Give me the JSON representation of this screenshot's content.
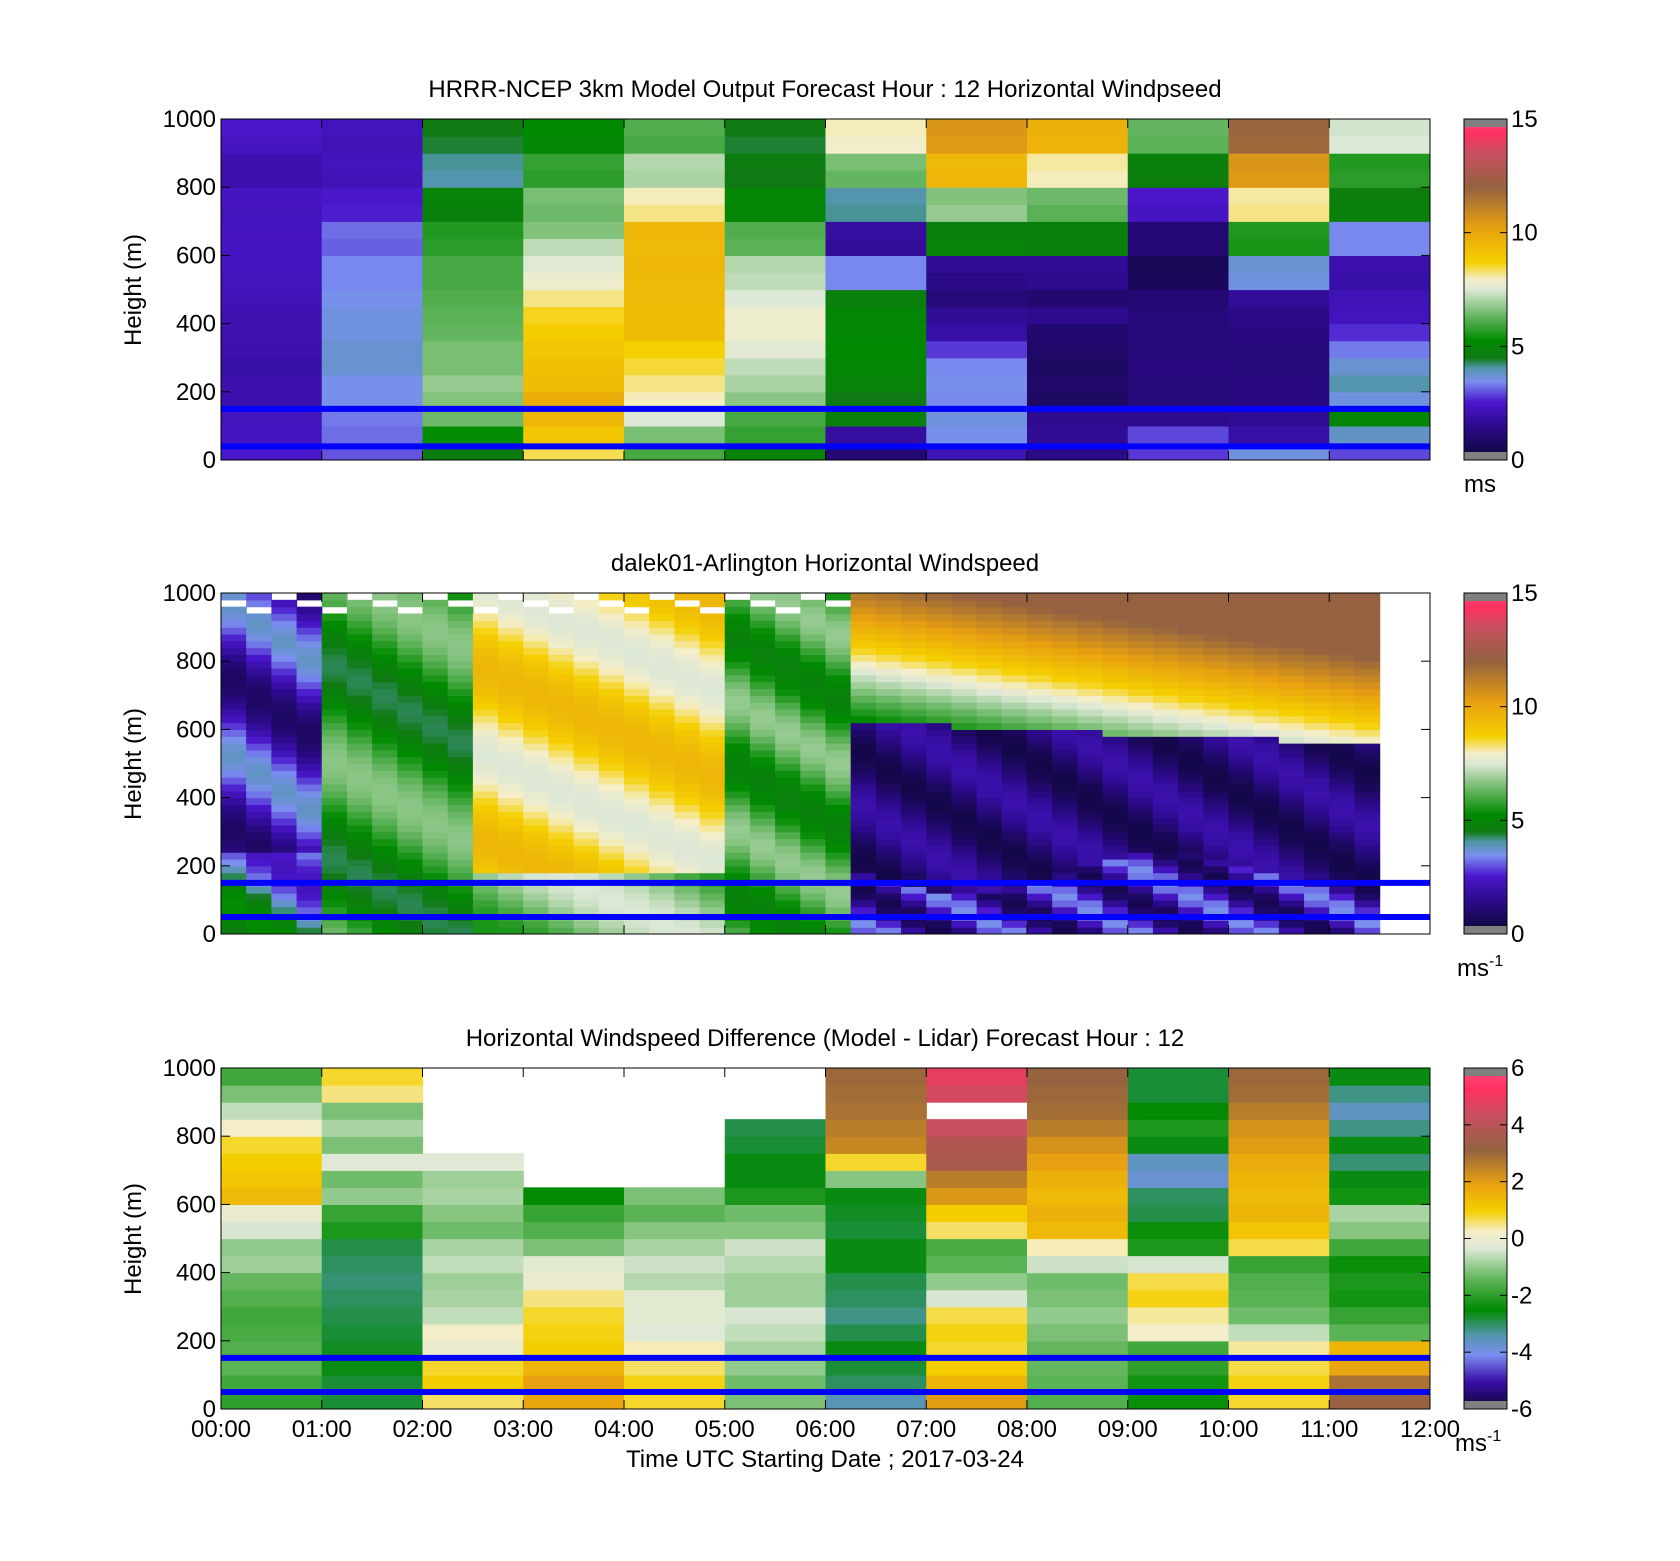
{
  "figure": {
    "xlabel": "Time UTC  Starting Date ; 2017-03-24",
    "x_ticks": [
      "00:00",
      "01:00",
      "02:00",
      "03:00",
      "04:00",
      "05:00",
      "06:00",
      "07:00",
      "08:00",
      "09:00",
      "10:00",
      "11:00",
      "12:00"
    ],
    "reference_line_color": "#0000ff"
  },
  "chart_data": [
    {
      "type": "heatmap",
      "title": "HRRR-NCEP 3km Model Output   Forecast Hour : 12 Horizontal Windpseed",
      "ylabel": "Height (m)",
      "ylim": [
        0,
        1000
      ],
      "y_ticks": [
        0,
        200,
        400,
        600,
        800,
        1000
      ],
      "colorbar": {
        "range": [
          0,
          15
        ],
        "ticks": [
          0,
          5,
          10,
          15
        ],
        "unit": "ms",
        "unit_sup": ""
      },
      "reference_lines_m": [
        40,
        150
      ],
      "x_hours": [
        0,
        1,
        2,
        3,
        4,
        5,
        6,
        7,
        8,
        9,
        10,
        11
      ],
      "heights_m": [
        25,
        75,
        125,
        175,
        225,
        275,
        325,
        375,
        425,
        475,
        525,
        575,
        625,
        675,
        725,
        775,
        825,
        875,
        925,
        975
      ],
      "values": [
        [
          2.5,
          3.0,
          4.6,
          8.4,
          6.0,
          4.9,
          1.1,
          2.2,
          1.4,
          2.8,
          3.6,
          2.9
        ],
        [
          2.4,
          3.2,
          5.3,
          9.0,
          6.5,
          5.8,
          1.8,
          3.5,
          1.6,
          2.9,
          1.9,
          3.8
        ],
        [
          2.3,
          3.3,
          6.4,
          9.5,
          7.5,
          6.0,
          4.8,
          3.6,
          1.5,
          1.5,
          1.6,
          5.0
        ],
        [
          2.0,
          3.5,
          6.6,
          9.8,
          8.0,
          6.7,
          4.5,
          3.4,
          0.8,
          1.2,
          1.3,
          3.6
        ],
        [
          2.0,
          3.5,
          6.8,
          9.3,
          8.2,
          7.0,
          4.9,
          3.5,
          0.9,
          1.2,
          1.3,
          4.0
        ],
        [
          1.9,
          3.7,
          6.5,
          9.2,
          8.5,
          7.2,
          5.0,
          3.4,
          0.8,
          1.3,
          1.2,
          3.7
        ],
        [
          2.0,
          3.7,
          6.5,
          9.0,
          8.7,
          7.6,
          5.2,
          2.8,
          0.9,
          1.2,
          1.2,
          3.3
        ],
        [
          2.1,
          3.6,
          6.3,
          8.8,
          9.3,
          7.8,
          5.1,
          1.9,
          1.0,
          1.2,
          1.3,
          2.7
        ],
        [
          2.1,
          3.6,
          6.2,
          8.6,
          9.3,
          7.8,
          5.0,
          1.6,
          1.5,
          1.2,
          1.4,
          2.3
        ],
        [
          2.2,
          3.5,
          6.1,
          8.2,
          9.4,
          7.5,
          4.8,
          1.2,
          1.0,
          1.1,
          1.7,
          2.2
        ],
        [
          2.3,
          3.4,
          6.0,
          7.8,
          9.4,
          7.2,
          3.4,
          1.4,
          1.5,
          0.7,
          3.6,
          1.9
        ],
        [
          2.4,
          3.4,
          6.0,
          7.6,
          9.5,
          7.1,
          3.4,
          1.6,
          1.6,
          0.6,
          3.7,
          2.0
        ],
        [
          2.4,
          3.1,
          5.7,
          7.2,
          9.4,
          6.2,
          1.7,
          4.9,
          4.8,
          1.1,
          5.5,
          3.4
        ],
        [
          2.4,
          3.2,
          5.6,
          6.6,
          9.5,
          6.1,
          1.8,
          4.8,
          4.8,
          1.1,
          5.6,
          3.4
        ],
        [
          2.3,
          2.6,
          4.8,
          6.4,
          8.2,
          5.0,
          4.1,
          6.8,
          6.2,
          2.4,
          8.2,
          4.8
        ],
        [
          2.4,
          2.5,
          4.9,
          6.5,
          8.0,
          5.1,
          4.0,
          6.6,
          6.4,
          2.5,
          8.1,
          4.7
        ],
        [
          2.0,
          2.2,
          4.0,
          5.7,
          7.0,
          4.5,
          6.3,
          9.5,
          8.0,
          4.7,
          10.4,
          5.7
        ],
        [
          2.0,
          2.3,
          4.1,
          5.8,
          7.1,
          4.6,
          6.5,
          9.4,
          8.1,
          4.8,
          10.5,
          5.6
        ],
        [
          2.4,
          2.2,
          4.4,
          5.1,
          6.0,
          4.4,
          7.9,
          10.4,
          9.6,
          6.2,
          11.8,
          7.5
        ],
        [
          2.5,
          2.3,
          4.5,
          5.2,
          6.1,
          4.5,
          8.0,
          10.5,
          9.7,
          6.3,
          11.9,
          7.4
        ]
      ]
    },
    {
      "type": "heatmap",
      "title": "dalek01-Arlington  Horizontal Windspeed",
      "ylabel": "Height (m)",
      "ylim": [
        0,
        1000
      ],
      "y_ticks": [
        0,
        200,
        400,
        600,
        800,
        1000
      ],
      "colorbar": {
        "range": [
          0,
          15
        ],
        "ticks": [
          0,
          5,
          10,
          15
        ],
        "unit": "ms",
        "unit_sup": "-1"
      },
      "reference_lines_m": [
        50,
        150
      ]
    },
    {
      "type": "heatmap",
      "title": "Horizontal Windspeed Difference (Model - Lidar) Forecast Hour : 12",
      "ylabel": "Height (m)",
      "ylim": [
        0,
        1000
      ],
      "y_ticks": [
        0,
        200,
        400,
        600,
        800,
        1000
      ],
      "colorbar": {
        "range": [
          -6,
          6
        ],
        "ticks": [
          -6,
          -4,
          -2,
          0,
          2,
          4,
          6
        ],
        "unit": "ms",
        "unit_sup": "-1"
      },
      "reference_lines_m": [
        50,
        150
      ],
      "x_hours": [
        0,
        1,
        2,
        3,
        4,
        5,
        6,
        7,
        8,
        9,
        10,
        11
      ],
      "heights_m": [
        25,
        75,
        125,
        175,
        225,
        275,
        325,
        375,
        425,
        475,
        525,
        575,
        625,
        675,
        725,
        775,
        825,
        875,
        925,
        975
      ],
      "values": [
        [
          -2.0,
          -2.8,
          0.6,
          1.8,
          0.8,
          -1.2,
          -3.5,
          2.0,
          -1.6,
          -2.4,
          0.8,
          3.2
        ],
        [
          -1.8,
          -2.8,
          1.0,
          1.9,
          0.9,
          -1.3,
          -3.0,
          1.5,
          -1.5,
          -2.3,
          0.9,
          2.8
        ],
        [
          -1.5,
          -2.6,
          0.8,
          1.5,
          0.6,
          -1.0,
          -2.8,
          1.0,
          -1.4,
          -2.0,
          0.7,
          1.8
        ],
        [
          -1.6,
          -2.7,
          0.0,
          1.0,
          0.3,
          -0.8,
          -2.6,
          0.8,
          -1.4,
          -1.8,
          0.4,
          1.5
        ],
        [
          -1.7,
          -2.8,
          0.2,
          0.9,
          -0.3,
          -0.6,
          -2.9,
          0.9,
          -1.2,
          0.2,
          -0.6,
          -1.5
        ],
        [
          -1.8,
          -2.9,
          -0.6,
          0.8,
          -0.2,
          -0.4,
          -3.2,
          0.7,
          -1.0,
          0.4,
          -1.3,
          -1.9
        ],
        [
          -1.6,
          -3.0,
          -0.8,
          0.5,
          -0.2,
          -0.9,
          -3.0,
          -0.4,
          -1.2,
          0.9,
          -1.5,
          -2.3
        ],
        [
          -1.4,
          -3.1,
          -0.9,
          0.0,
          -0.7,
          -0.9,
          -2.9,
          -1.0,
          -1.3,
          0.7,
          -1.6,
          -2.2
        ],
        [
          -0.9,
          -3.0,
          -0.6,
          -0.2,
          -0.5,
          -0.7,
          -2.6,
          -1.5,
          -0.5,
          -0.4,
          -1.9,
          -2.4
        ],
        [
          -1.0,
          -2.9,
          -0.8,
          -1.2,
          -0.8,
          -0.5,
          -2.6,
          -1.7,
          0.3,
          -2.2,
          0.7,
          -1.8
        ],
        [
          -0.4,
          -2.2,
          -1.3,
          -1.6,
          -1.1,
          -1.1,
          -2.8,
          0.6,
          1.4,
          -2.4,
          1.2,
          -1.1
        ],
        [
          0.0,
          -1.9,
          -1.1,
          -1.9,
          -1.5,
          -1.3,
          -2.7,
          1.0,
          1.6,
          -2.9,
          1.5,
          -0.8
        ],
        [
          1.4,
          -1.0,
          -0.8,
          -2.5,
          -1.2,
          -2.2,
          -2.6,
          2.1,
          1.4,
          -3.0,
          1.4,
          -2.3
        ],
        [
          1.2,
          -1.3,
          -0.9,
          null,
          null,
          -2.6,
          -1.1,
          2.6,
          1.6,
          -3.8,
          1.5,
          -2.6
        ],
        [
          1.0,
          -0.3,
          -0.3,
          null,
          null,
          -2.6,
          0.8,
          3.6,
          1.9,
          -3.6,
          1.7,
          -3.1
        ],
        [
          0.8,
          -1.2,
          null,
          null,
          null,
          -2.8,
          2.4,
          3.8,
          2.2,
          -2.6,
          2.0,
          -2.6
        ],
        [
          0.2,
          -0.8,
          null,
          null,
          null,
          -2.9,
          2.6,
          4.3,
          2.6,
          -2.2,
          2.2,
          -3.2
        ],
        [
          -0.6,
          -1.2,
          null,
          null,
          null,
          null,
          2.8,
          null,
          2.9,
          -2.5,
          2.6,
          -3.6
        ],
        [
          -1.2,
          0.5,
          null,
          null,
          null,
          null,
          2.9,
          4.5,
          3.0,
          -2.8,
          2.9,
          -3.2
        ],
        [
          -1.8,
          0.8,
          null,
          null,
          null,
          null,
          3.0,
          4.8,
          3.1,
          -2.8,
          3.0,
          -2.6
        ]
      ]
    }
  ]
}
